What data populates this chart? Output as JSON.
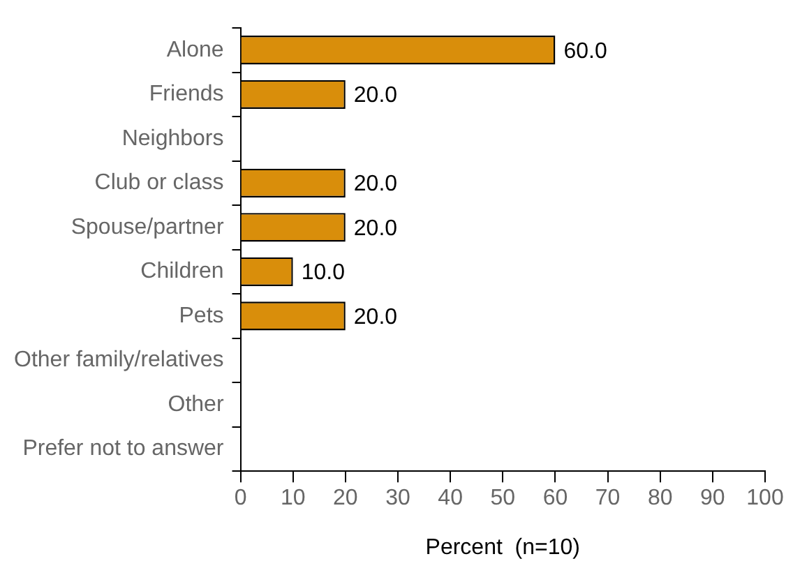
{
  "chart_data": {
    "type": "bar",
    "orientation": "horizontal",
    "xlabel": "Percent  (n=10)",
    "categories": [
      "Alone",
      "Friends",
      "Neighbors",
      "Club or class",
      "Spouse/partner",
      "Children",
      "Pets",
      "Other family/relatives",
      "Other",
      "Prefer not to answer"
    ],
    "values": [
      60,
      20,
      0,
      20,
      20,
      10,
      20,
      0,
      0,
      0
    ],
    "value_labels": [
      "60.0",
      "20.0",
      null,
      "20.0",
      "20.0",
      "10.0",
      "20.0",
      null,
      null,
      null
    ],
    "color": "#d98e0b",
    "xlim": [
      0,
      100
    ],
    "xticks": [
      0,
      10,
      20,
      30,
      40,
      50,
      60,
      70,
      80,
      90,
      100
    ],
    "grid": false,
    "legend": false
  }
}
